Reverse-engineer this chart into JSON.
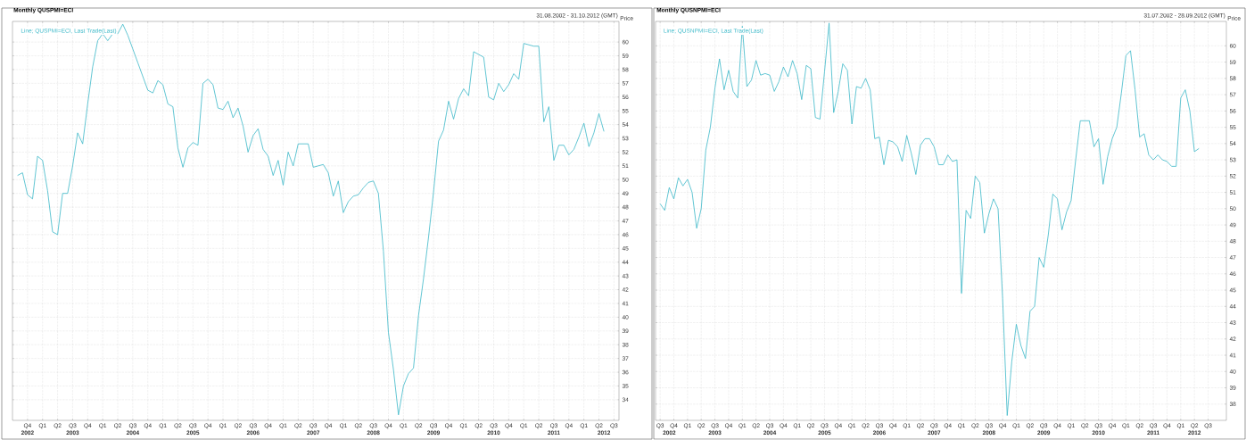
{
  "chart_data": [
    {
      "type": "line",
      "title": "Monthly QUSPMI=ECI",
      "subtitle": "31.08.2002 - 31.10.2012 (GMT)",
      "ylabel": "Price",
      "x": [
        "2002-08",
        "2002-09",
        "2002-10",
        "2002-11",
        "2002-12",
        "2003-01",
        "2003-02",
        "2003-03",
        "2003-04",
        "2003-05",
        "2003-06",
        "2003-07",
        "2003-08",
        "2003-09",
        "2003-10",
        "2003-11",
        "2003-12",
        "2004-01",
        "2004-02",
        "2004-03",
        "2004-04",
        "2004-05",
        "2004-06",
        "2004-07",
        "2004-08",
        "2004-09",
        "2004-10",
        "2004-11",
        "2004-12",
        "2005-01",
        "2005-02",
        "2005-03",
        "2005-04",
        "2005-05",
        "2005-06",
        "2005-07",
        "2005-08",
        "2005-09",
        "2005-10",
        "2005-11",
        "2005-12",
        "2006-01",
        "2006-02",
        "2006-03",
        "2006-04",
        "2006-05",
        "2006-06",
        "2006-07",
        "2006-08",
        "2006-09",
        "2006-10",
        "2006-11",
        "2006-12",
        "2007-01",
        "2007-02",
        "2007-03",
        "2007-04",
        "2007-05",
        "2007-06",
        "2007-07",
        "2007-08",
        "2007-09",
        "2007-10",
        "2007-11",
        "2007-12",
        "2008-01",
        "2008-02",
        "2008-03",
        "2008-04",
        "2008-05",
        "2008-06",
        "2008-07",
        "2008-08",
        "2008-09",
        "2008-10",
        "2008-11",
        "2008-12",
        "2009-01",
        "2009-02",
        "2009-03",
        "2009-04",
        "2009-05",
        "2009-06",
        "2009-07",
        "2009-08",
        "2009-09",
        "2009-10",
        "2009-11",
        "2009-12",
        "2010-01",
        "2010-02",
        "2010-03",
        "2010-04",
        "2010-05",
        "2010-06",
        "2010-07",
        "2010-08",
        "2010-09",
        "2010-10",
        "2010-11",
        "2010-12",
        "2011-01",
        "2011-02",
        "2011-03",
        "2011-04",
        "2011-05",
        "2011-06",
        "2011-07",
        "2011-08",
        "2011-09",
        "2011-10",
        "2011-11",
        "2011-12",
        "2012-01",
        "2012-02",
        "2012-03",
        "2012-04",
        "2012-05"
      ],
      "series": [
        {
          "name": "Line; QUSPMI=ECI, Last Trade(Last)",
          "color": "#3bb8c8",
          "values": [
            50.3,
            50.5,
            48.9,
            48.6,
            51.7,
            51.4,
            49.2,
            46.2,
            46.0,
            49.0,
            49.0,
            51.0,
            53.4,
            52.6,
            55.5,
            58.2,
            60.1,
            60.6,
            60.1,
            60.6,
            60.6,
            61.3,
            60.5,
            59.5,
            58.5,
            57.5,
            56.5,
            56.3,
            57.2,
            56.9,
            55.5,
            55.3,
            52.3,
            50.9,
            52.3,
            52.7,
            52.5,
            57.0,
            57.3,
            56.9,
            55.2,
            55.1,
            55.7,
            54.5,
            55.2,
            53.9,
            52.0,
            53.2,
            53.7,
            52.2,
            51.7,
            50.3,
            51.4,
            49.6,
            52.0,
            51.0,
            52.6,
            52.6,
            52.6,
            50.9,
            51.0,
            51.1,
            50.5,
            48.8,
            49.9,
            47.6,
            48.4,
            48.8,
            48.9,
            49.4,
            49.8,
            49.9,
            49.0,
            44.8,
            38.9,
            36.2,
            32.9,
            35.0,
            35.9,
            36.3,
            40.1,
            42.8,
            45.8,
            49.1,
            52.8,
            53.6,
            55.7,
            54.4,
            55.9,
            56.6,
            56.1,
            59.3,
            59.1,
            58.9,
            56.0,
            55.8,
            57.0,
            56.4,
            56.9,
            57.7,
            57.3,
            59.9,
            59.8,
            59.7,
            59.7,
            54.2,
            55.3,
            51.4,
            52.5,
            52.5,
            51.8,
            52.2,
            53.1,
            54.1,
            52.4,
            53.4,
            54.8,
            53.5
          ]
        }
      ],
      "xlim": [
        "2002-07",
        "2012-08"
      ],
      "xticks": [
        {
          "value": "2002-10",
          "label": "Q4"
        },
        {
          "value": "2003-01",
          "label": "Q1"
        },
        {
          "value": "2003-04",
          "label": "Q2"
        },
        {
          "value": "2003-07",
          "label": "Q3"
        },
        {
          "value": "2003-10",
          "label": "Q4"
        },
        {
          "value": "2004-01",
          "label": "Q1"
        },
        {
          "value": "2004-04",
          "label": "Q2"
        },
        {
          "value": "2004-07",
          "label": "Q3"
        },
        {
          "value": "2004-10",
          "label": "Q4"
        },
        {
          "value": "2005-01",
          "label": "Q1"
        },
        {
          "value": "2005-04",
          "label": "Q2"
        },
        {
          "value": "2005-07",
          "label": "Q3"
        },
        {
          "value": "2005-10",
          "label": "Q4"
        },
        {
          "value": "2006-01",
          "label": "Q1"
        },
        {
          "value": "2006-04",
          "label": "Q2"
        },
        {
          "value": "2006-07",
          "label": "Q3"
        },
        {
          "value": "2006-10",
          "label": "Q4"
        },
        {
          "value": "2007-01",
          "label": "Q1"
        },
        {
          "value": "2007-04",
          "label": "Q2"
        },
        {
          "value": "2007-07",
          "label": "Q3"
        },
        {
          "value": "2007-10",
          "label": "Q4"
        },
        {
          "value": "2008-01",
          "label": "Q1"
        },
        {
          "value": "2008-04",
          "label": "Q2"
        },
        {
          "value": "2008-07",
          "label": "Q3"
        },
        {
          "value": "2008-10",
          "label": "Q4"
        },
        {
          "value": "2009-01",
          "label": "Q1"
        },
        {
          "value": "2009-04",
          "label": "Q2"
        },
        {
          "value": "2009-07",
          "label": "Q3"
        },
        {
          "value": "2009-10",
          "label": "Q4"
        },
        {
          "value": "2010-01",
          "label": "Q1"
        },
        {
          "value": "2010-04",
          "label": "Q2"
        },
        {
          "value": "2010-07",
          "label": "Q3"
        },
        {
          "value": "2010-10",
          "label": "Q4"
        },
        {
          "value": "2011-01",
          "label": "Q1"
        },
        {
          "value": "2011-04",
          "label": "Q2"
        },
        {
          "value": "2011-07",
          "label": "Q3"
        },
        {
          "value": "2011-10",
          "label": "Q4"
        },
        {
          "value": "2012-01",
          "label": "Q1"
        },
        {
          "value": "2012-04",
          "label": "Q2"
        },
        {
          "value": "2012-07",
          "label": "Q3"
        }
      ],
      "x2lim": [
        "2002-07",
        "2012-08"
      ],
      "x2ticks": [
        {
          "value": "2002-10",
          "label": "2002"
        },
        {
          "value": "2003-07",
          "label": "2003"
        },
        {
          "value": "2004-07",
          "label": "2004"
        },
        {
          "value": "2005-07",
          "label": "2005"
        },
        {
          "value": "2006-07",
          "label": "2006"
        },
        {
          "value": "2007-07",
          "label": "2007"
        },
        {
          "value": "2008-07",
          "label": "2008"
        },
        {
          "value": "2009-07",
          "label": "2009"
        },
        {
          "value": "2010-07",
          "label": "2010"
        },
        {
          "value": "2011-07",
          "label": "2011"
        },
        {
          "value": "2012-05",
          "label": "2012"
        }
      ],
      "ylim": [
        32.5,
        61.5
      ],
      "yticks": [
        34,
        35,
        36,
        37,
        38,
        39,
        40,
        41,
        42,
        43,
        44,
        45,
        46,
        47,
        48,
        49,
        50,
        51,
        52,
        53,
        54,
        55,
        56,
        57,
        58,
        59,
        60
      ],
      "grid": true,
      "legend": "top left"
    },
    {
      "type": "line",
      "title": "Monthly QUSNPMI=ECI",
      "subtitle": "31.07.2002 - 28.09.2012 (GMT)",
      "ylabel": "Price",
      "x": [
        "2002-07",
        "2002-08",
        "2002-09",
        "2002-10",
        "2002-11",
        "2002-12",
        "2003-01",
        "2003-02",
        "2003-03",
        "2003-04",
        "2003-05",
        "2003-06",
        "2003-07",
        "2003-08",
        "2003-09",
        "2003-10",
        "2003-11",
        "2003-12",
        "2004-01",
        "2004-02",
        "2004-03",
        "2004-04",
        "2004-05",
        "2004-06",
        "2004-07",
        "2004-08",
        "2004-09",
        "2004-10",
        "2004-11",
        "2004-12",
        "2005-01",
        "2005-02",
        "2005-03",
        "2005-04",
        "2005-05",
        "2005-06",
        "2005-07",
        "2005-08",
        "2005-09",
        "2005-10",
        "2005-11",
        "2005-12",
        "2006-01",
        "2006-02",
        "2006-03",
        "2006-04",
        "2006-05",
        "2006-06",
        "2006-07",
        "2006-08",
        "2006-09",
        "2006-10",
        "2006-11",
        "2006-12",
        "2007-01",
        "2007-02",
        "2007-03",
        "2007-04",
        "2007-05",
        "2007-06",
        "2007-07",
        "2007-08",
        "2007-09",
        "2007-10",
        "2007-11",
        "2007-12",
        "2008-01",
        "2008-02",
        "2008-03",
        "2008-04",
        "2008-05",
        "2008-06",
        "2008-07",
        "2008-08",
        "2008-09",
        "2008-10",
        "2008-11",
        "2008-12",
        "2009-01",
        "2009-02",
        "2009-03",
        "2009-04",
        "2009-05",
        "2009-06",
        "2009-07",
        "2009-08",
        "2009-09",
        "2009-10",
        "2009-11",
        "2009-12",
        "2010-01",
        "2010-02",
        "2010-03",
        "2010-04",
        "2010-05",
        "2010-06",
        "2010-07",
        "2010-08",
        "2010-09",
        "2010-10",
        "2010-11",
        "2010-12",
        "2011-01",
        "2011-02",
        "2011-03",
        "2011-04",
        "2011-05",
        "2011-06",
        "2011-07",
        "2011-08",
        "2011-09",
        "2011-10",
        "2011-11",
        "2011-12",
        "2012-01",
        "2012-02",
        "2012-03",
        "2012-04",
        "2012-05"
      ],
      "series": [
        {
          "name": "Line; QUSNPMI=ECI, Last Trade(Last)",
          "color": "#3bb8c8",
          "values": [
            50.3,
            49.9,
            51.3,
            50.6,
            51.9,
            51.4,
            51.8,
            51.0,
            48.8,
            50.0,
            53.6,
            55.0,
            57.4,
            59.2,
            57.3,
            58.5,
            57.2,
            56.8,
            61.2,
            57.5,
            57.9,
            59.1,
            58.2,
            58.3,
            58.2,
            57.2,
            57.8,
            58.7,
            58.1,
            59.1,
            58.3,
            56.7,
            58.8,
            58.6,
            55.6,
            55.5,
            58.4,
            61.4,
            55.9,
            57.2,
            58.9,
            58.5,
            55.2,
            57.5,
            57.4,
            58.0,
            57.3,
            54.3,
            54.4,
            52.7,
            54.2,
            54.1,
            53.8,
            52.9,
            54.5,
            53.4,
            52.1,
            53.9,
            54.3,
            54.3,
            53.8,
            52.7,
            52.7,
            53.3,
            52.9,
            53.0,
            44.8,
            49.9,
            49.4,
            52.0,
            51.6,
            48.5,
            49.7,
            50.6,
            50.0,
            44.5,
            37.3,
            40.6,
            42.9,
            41.6,
            40.8,
            43.7,
            44.0,
            47.0,
            46.4,
            48.4,
            50.9,
            50.6,
            48.7,
            49.8,
            50.5,
            53.0,
            55.4,
            55.4,
            55.4,
            53.8,
            54.3,
            51.5,
            53.2,
            54.3,
            55.0,
            57.1,
            59.4,
            59.7,
            57.3,
            54.4,
            54.6,
            53.3,
            53.0,
            53.3,
            53.0,
            52.9,
            52.6,
            52.6,
            56.8,
            57.3,
            56.0,
            53.5,
            53.7
          ]
        }
      ],
      "xlim": [
        "2002-06",
        "2012-11"
      ],
      "xticks": [
        {
          "value": "2002-07",
          "label": "Q3"
        },
        {
          "value": "2002-10",
          "label": "Q4"
        },
        {
          "value": "2003-01",
          "label": "Q1"
        },
        {
          "value": "2003-04",
          "label": "Q2"
        },
        {
          "value": "2003-07",
          "label": "Q3"
        },
        {
          "value": "2003-10",
          "label": "Q4"
        },
        {
          "value": "2004-01",
          "label": "Q1"
        },
        {
          "value": "2004-04",
          "label": "Q2"
        },
        {
          "value": "2004-07",
          "label": "Q3"
        },
        {
          "value": "2004-10",
          "label": "Q4"
        },
        {
          "value": "2005-01",
          "label": "Q1"
        },
        {
          "value": "2005-04",
          "label": "Q2"
        },
        {
          "value": "2005-07",
          "label": "Q3"
        },
        {
          "value": "2005-10",
          "label": "Q4"
        },
        {
          "value": "2006-01",
          "label": "Q1"
        },
        {
          "value": "2006-04",
          "label": "Q2"
        },
        {
          "value": "2006-07",
          "label": "Q3"
        },
        {
          "value": "2006-10",
          "label": "Q4"
        },
        {
          "value": "2007-01",
          "label": "Q1"
        },
        {
          "value": "2007-04",
          "label": "Q2"
        },
        {
          "value": "2007-07",
          "label": "Q3"
        },
        {
          "value": "2007-10",
          "label": "Q4"
        },
        {
          "value": "2008-01",
          "label": "Q1"
        },
        {
          "value": "2008-04",
          "label": "Q2"
        },
        {
          "value": "2008-07",
          "label": "Q3"
        },
        {
          "value": "2008-10",
          "label": "Q4"
        },
        {
          "value": "2009-01",
          "label": "Q1"
        },
        {
          "value": "2009-04",
          "label": "Q2"
        },
        {
          "value": "2009-07",
          "label": "Q3"
        },
        {
          "value": "2009-10",
          "label": "Q4"
        },
        {
          "value": "2010-01",
          "label": "Q1"
        },
        {
          "value": "2010-04",
          "label": "Q2"
        },
        {
          "value": "2010-07",
          "label": "Q3"
        },
        {
          "value": "2010-10",
          "label": "Q4"
        },
        {
          "value": "2011-01",
          "label": "Q1"
        },
        {
          "value": "2011-04",
          "label": "Q2"
        },
        {
          "value": "2011-07",
          "label": "Q3"
        },
        {
          "value": "2011-10",
          "label": "Q4"
        },
        {
          "value": "2012-01",
          "label": "Q1"
        },
        {
          "value": "2012-04",
          "label": "Q2"
        },
        {
          "value": "2012-07",
          "label": "Q3"
        }
      ],
      "x2lim": [
        "2002-06",
        "2012-11"
      ],
      "x2ticks": [
        {
          "value": "2002-09",
          "label": "2002"
        },
        {
          "value": "2003-07",
          "label": "2003"
        },
        {
          "value": "2004-07",
          "label": "2004"
        },
        {
          "value": "2005-07",
          "label": "2005"
        },
        {
          "value": "2006-07",
          "label": "2006"
        },
        {
          "value": "2007-07",
          "label": "2007"
        },
        {
          "value": "2008-07",
          "label": "2008"
        },
        {
          "value": "2009-07",
          "label": "2009"
        },
        {
          "value": "2010-07",
          "label": "2010"
        },
        {
          "value": "2011-07",
          "label": "2011"
        },
        {
          "value": "2012-04",
          "label": "2012"
        }
      ],
      "ylim": [
        37,
        61.5
      ],
      "yticks": [
        38,
        39,
        40,
        41,
        42,
        43,
        44,
        45,
        46,
        47,
        48,
        49,
        50,
        51,
        52,
        53,
        54,
        55,
        56,
        57,
        58,
        59,
        60
      ],
      "grid": true,
      "legend": "top left"
    }
  ]
}
